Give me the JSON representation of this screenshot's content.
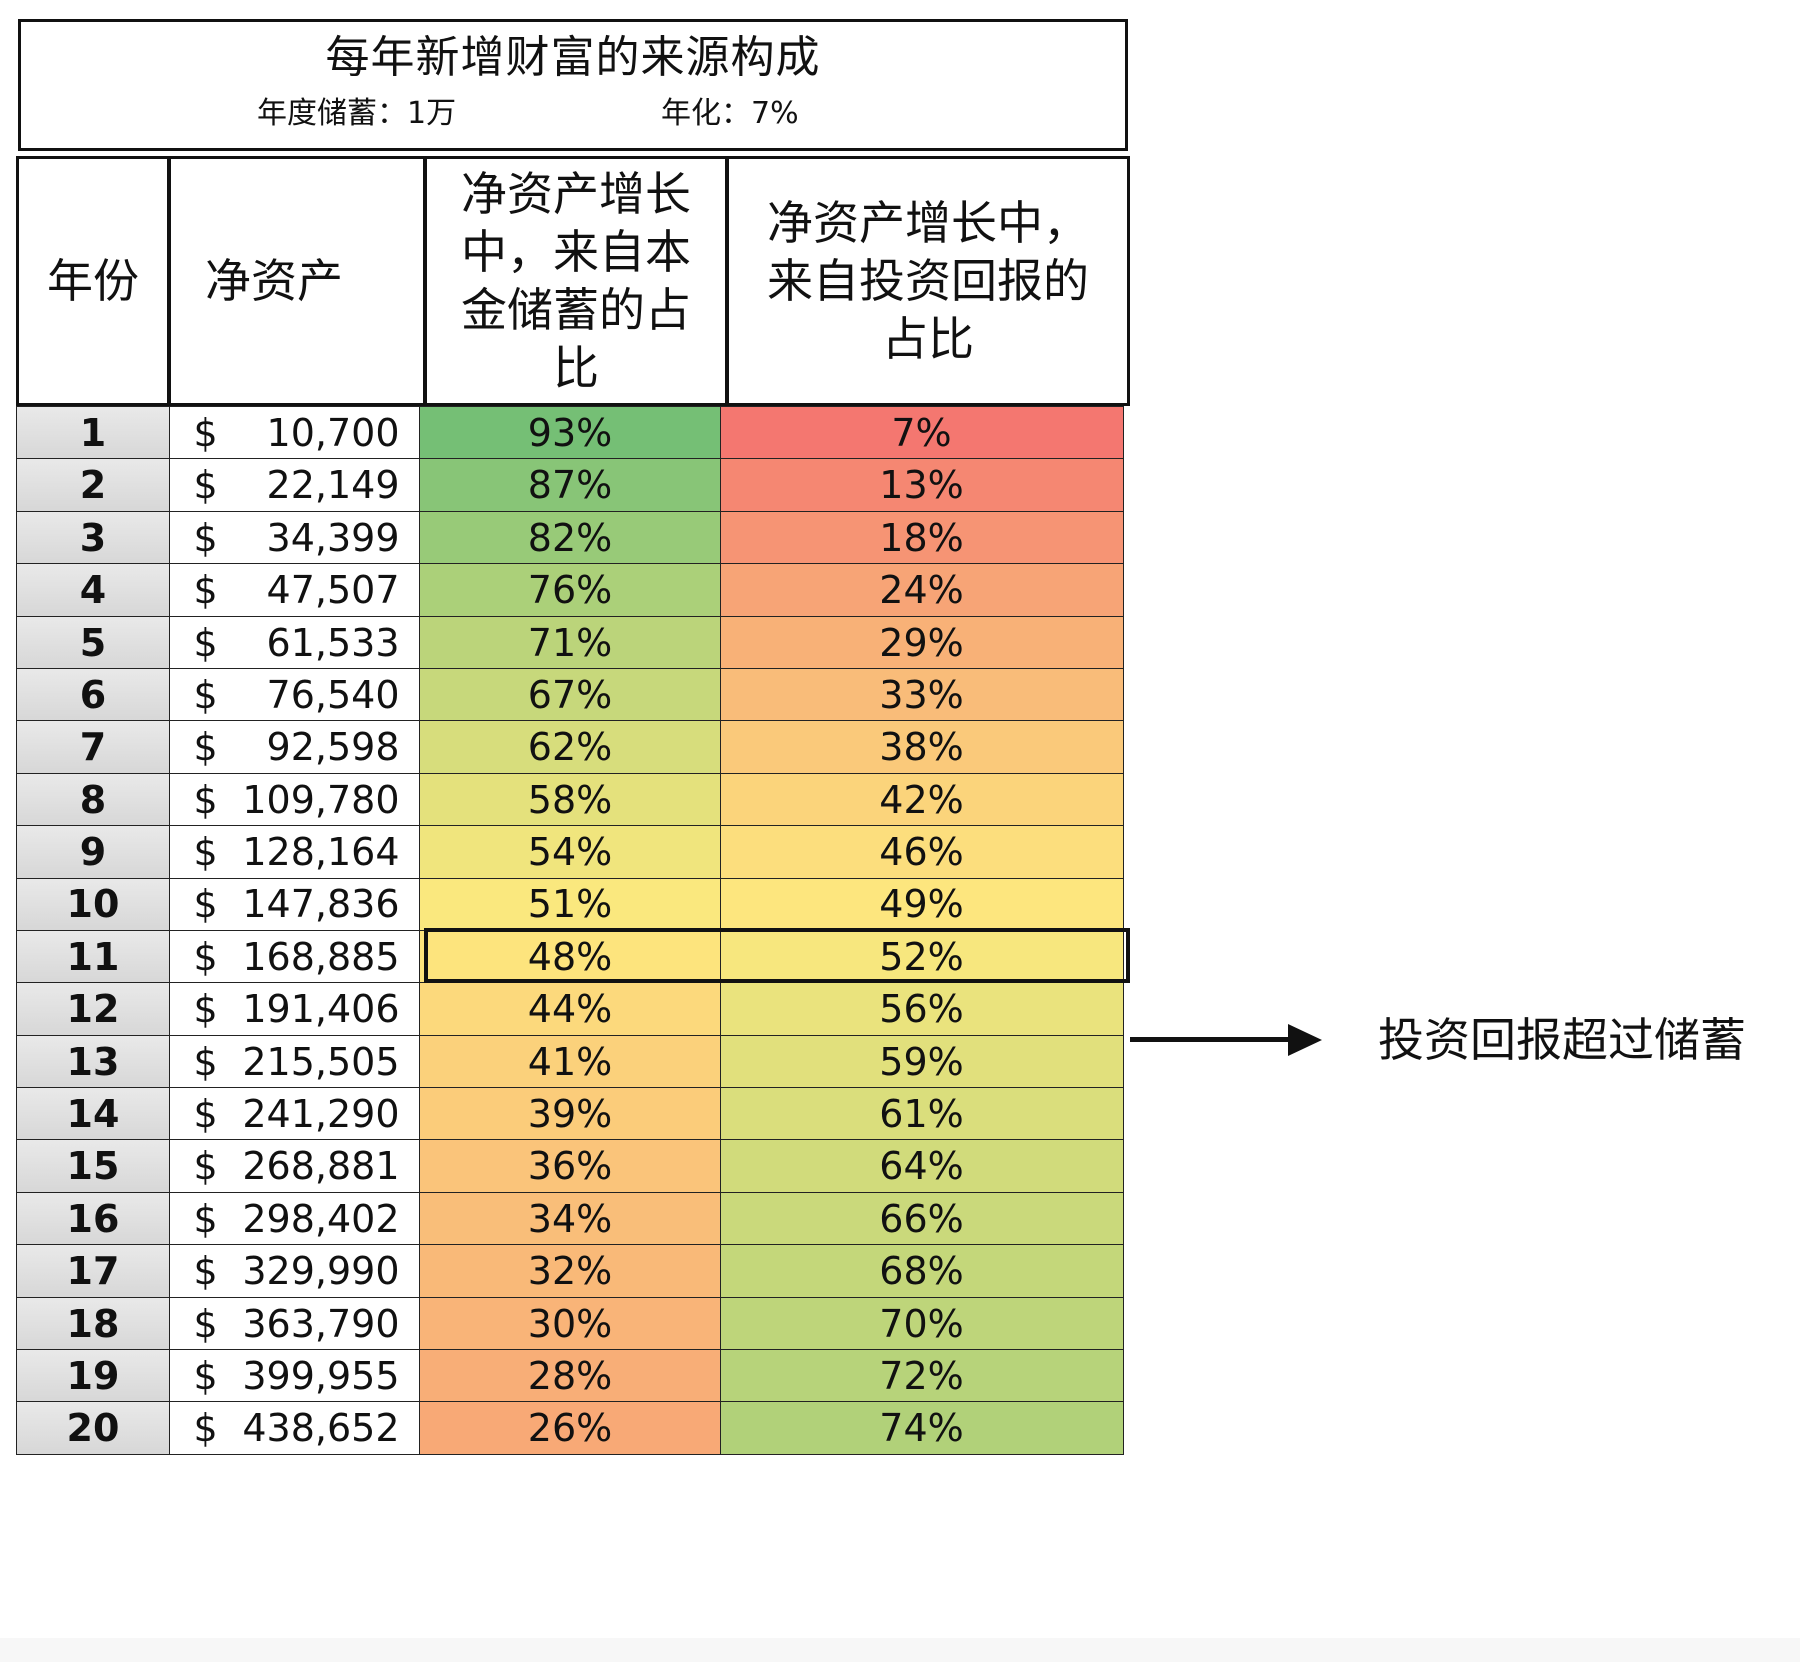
{
  "title": {
    "main": "每年新增财富的来源构成",
    "savings_label": "年度储蓄：1万",
    "rate_label": "年化：7%"
  },
  "headers": {
    "year_lines": [
      "年份"
    ],
    "net_assets_lines": [
      "净资产"
    ],
    "savings_share_lines": [
      "净资产增长",
      "中，来自本",
      "金储蓄的占",
      "比"
    ],
    "investment_share_lines": [
      "净资产增长中，",
      "来自投资回报的",
      "占比"
    ]
  },
  "table": {
    "currency_symbol": "$",
    "rows": [
      {
        "year": "1",
        "net_assets": "10,700",
        "savings_share": "93%",
        "investment_share": "7%"
      },
      {
        "year": "2",
        "net_assets": "22,149",
        "savings_share": "87%",
        "investment_share": "13%"
      },
      {
        "year": "3",
        "net_assets": "34,399",
        "savings_share": "82%",
        "investment_share": "18%"
      },
      {
        "year": "4",
        "net_assets": "47,507",
        "savings_share": "76%",
        "investment_share": "24%"
      },
      {
        "year": "5",
        "net_assets": "61,533",
        "savings_share": "71%",
        "investment_share": "29%"
      },
      {
        "year": "6",
        "net_assets": "76,540",
        "savings_share": "67%",
        "investment_share": "33%"
      },
      {
        "year": "7",
        "net_assets": "92,598",
        "savings_share": "62%",
        "investment_share": "38%"
      },
      {
        "year": "8",
        "net_assets": "109,780",
        "savings_share": "58%",
        "investment_share": "42%"
      },
      {
        "year": "9",
        "net_assets": "128,164",
        "savings_share": "54%",
        "investment_share": "46%"
      },
      {
        "year": "10",
        "net_assets": "147,836",
        "savings_share": "51%",
        "investment_share": "49%"
      },
      {
        "year": "11",
        "net_assets": "168,885",
        "savings_share": "48%",
        "investment_share": "52%"
      },
      {
        "year": "12",
        "net_assets": "191,406",
        "savings_share": "44%",
        "investment_share": "56%"
      },
      {
        "year": "13",
        "net_assets": "215,505",
        "savings_share": "41%",
        "investment_share": "59%"
      },
      {
        "year": "14",
        "net_assets": "241,290",
        "savings_share": "39%",
        "investment_share": "61%"
      },
      {
        "year": "15",
        "net_assets": "268,881",
        "savings_share": "36%",
        "investment_share": "64%"
      },
      {
        "year": "16",
        "net_assets": "298,402",
        "savings_share": "34%",
        "investment_share": "66%"
      },
      {
        "year": "17",
        "net_assets": "329,990",
        "savings_share": "32%",
        "investment_share": "68%"
      },
      {
        "year": "18",
        "net_assets": "363,790",
        "savings_share": "30%",
        "investment_share": "70%"
      },
      {
        "year": "19",
        "net_assets": "399,955",
        "savings_share": "28%",
        "investment_share": "72%"
      },
      {
        "year": "20",
        "net_assets": "438,652",
        "savings_share": "26%",
        "investment_share": "74%"
      }
    ],
    "highlighted_year": "11"
  },
  "heat_colors": {
    "low": "#f2646e",
    "mid": "#fde97e",
    "high": "#5fb874"
  },
  "annotation": {
    "text": "投资回报超过储蓄",
    "icon": "right-arrow-icon"
  }
}
